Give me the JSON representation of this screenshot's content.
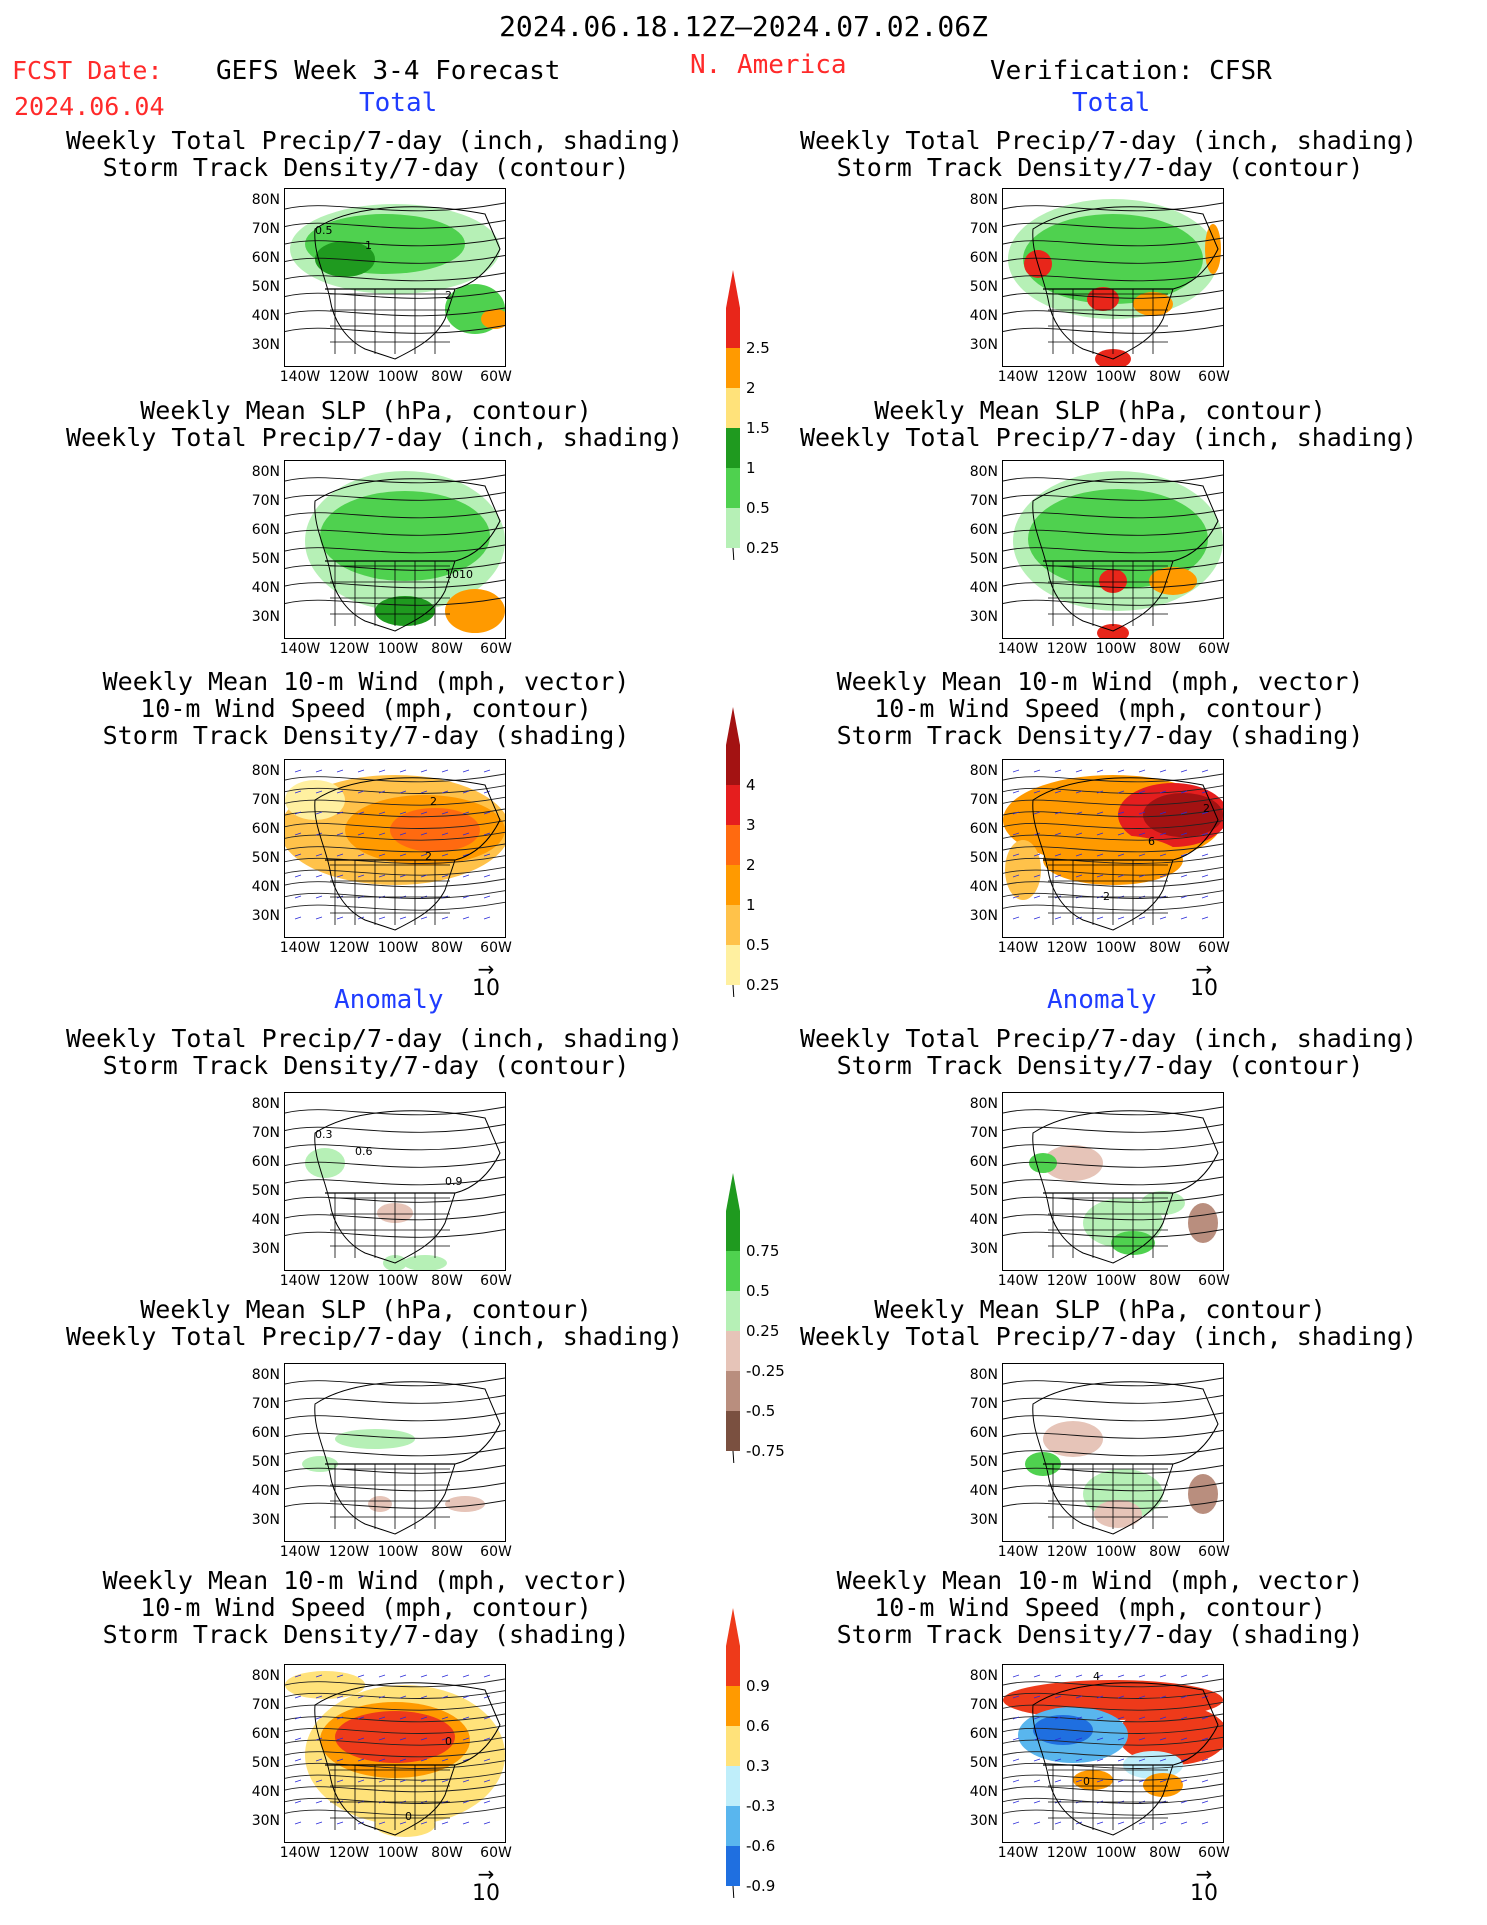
{
  "header": {
    "date_range": "2024.06.18.12Z–2024.07.02.06Z",
    "fcst_label": "FCST Date:",
    "fcst_date": "2024.06.04",
    "model": "GEFS Week 3-4 Forecast",
    "region": "N. America",
    "verification": "Verification: CFSR"
  },
  "sections": {
    "total": "Total",
    "anomaly": "Anomaly"
  },
  "titles": {
    "precip_storm": [
      "Weekly Total Precip/7-day (inch, shading)",
      "Storm Track Density/7-day (contour)"
    ],
    "slp_precip": [
      "Weekly Mean SLP (hPa, contour)",
      "Weekly Total Precip/7-day (inch, shading)"
    ],
    "wind": [
      "Weekly Mean 10-m Wind (mph, vector)",
      "10-m Wind Speed (mph, contour)",
      "Storm Track Density/7-day (shading)"
    ]
  },
  "axes": {
    "lat": [
      "80N",
      "70N",
      "60N",
      "50N",
      "40N",
      "30N"
    ],
    "lon": [
      "140W",
      "120W",
      "100W",
      "80W",
      "60W"
    ]
  },
  "vector_ref": "10",
  "contour_labels": {
    "p1": [
      "0.5",
      "1",
      "2"
    ],
    "p2": [
      "1010"
    ],
    "p3": [
      "2",
      "2"
    ],
    "p4": [
      "2",
      "6",
      "2"
    ],
    "p5": [
      "0.3",
      "0.6",
      "0.9"
    ],
    "p7": [
      "0",
      "0"
    ],
    "p8": [
      "4",
      "0"
    ]
  },
  "colorbars": {
    "precip_total": {
      "labels": [
        "2.5",
        "2",
        "1.5",
        "1",
        "0.5",
        "0.25"
      ],
      "colors": [
        "#e8261a",
        "#ff9a00",
        "#ffe27a",
        "#1f9a1f",
        "#4fd14f",
        "#b6f0b6"
      ]
    },
    "storm_total": {
      "labels": [
        "4",
        "3",
        "2",
        "1",
        "0.5",
        "0.25"
      ],
      "colors": [
        "#a31212",
        "#e51e1e",
        "#ff6a10",
        "#ff9a00",
        "#ffc24a",
        "#fff0a0"
      ]
    },
    "precip_anom": {
      "labels": [
        "0.75",
        "0.5",
        "0.25",
        "-0.25",
        "-0.5",
        "-0.75"
      ],
      "colors": [
        "#1f9a1f",
        "#4fd14f",
        "#b6f0b6",
        "#e6c4b8",
        "#b98e7e",
        "#7a5040"
      ]
    },
    "storm_anom": {
      "labels": [
        "0.9",
        "0.6",
        "0.3",
        "-0.3",
        "-0.6",
        "-0.9"
      ],
      "colors": [
        "#ee3a1a",
        "#ff9a00",
        "#ffe27a",
        "#bfeefa",
        "#59b6ee",
        "#1f6fe0"
      ]
    }
  }
}
